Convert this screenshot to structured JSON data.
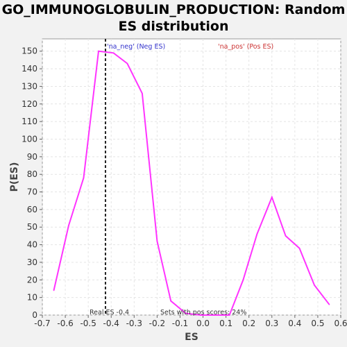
{
  "chart_data": {
    "type": "line",
    "title_line1": "GO_IMMUNOGLOBULIN_PRODUCTION: Random",
    "title_line2": "ES distribution",
    "xlabel": "ES",
    "ylabel": "P(ES)",
    "xlim": [
      -0.7,
      0.6
    ],
    "ylim": [
      0,
      157
    ],
    "xticks": [
      "-0.7",
      "-0.6",
      "-0.5",
      "-0.4",
      "-0.3",
      "-0.2",
      "-0.1",
      "0.0",
      "0.1",
      "0.2",
      "0.3",
      "0.4",
      "0.5",
      "0.6"
    ],
    "yticks": [
      "0",
      "10",
      "20",
      "30",
      "40",
      "50",
      "60",
      "70",
      "80",
      "90",
      "100",
      "110",
      "120",
      "130",
      "140",
      "150"
    ],
    "grid": true,
    "line_color": "#ff33ff",
    "series": [
      {
        "x": [
          -0.65,
          -0.585,
          -0.52,
          -0.455,
          -0.39,
          -0.33,
          -0.265,
          -0.2,
          -0.14,
          -0.075,
          -0.01,
          0.05,
          0.115,
          0.175,
          0.235,
          0.3,
          0.36,
          0.42,
          0.485,
          0.55
        ],
        "values": [
          14,
          51,
          78,
          150,
          149,
          143,
          126,
          42,
          8,
          1,
          0,
          0,
          0,
          20,
          46,
          67,
          45,
          38,
          17,
          6
        ]
      }
    ],
    "real_es": -0.425,
    "legend": {
      "neg_label": "'na_neg' (Neg ES)",
      "neg_color": "#3333cc",
      "pos_label": "'na_pos' (Pos ES)",
      "pos_color": "#cc3333"
    },
    "annotations": {
      "real_es_label": "Real ES -0.4",
      "pos_scores_label": "Sets with pos scores: 24%"
    }
  }
}
